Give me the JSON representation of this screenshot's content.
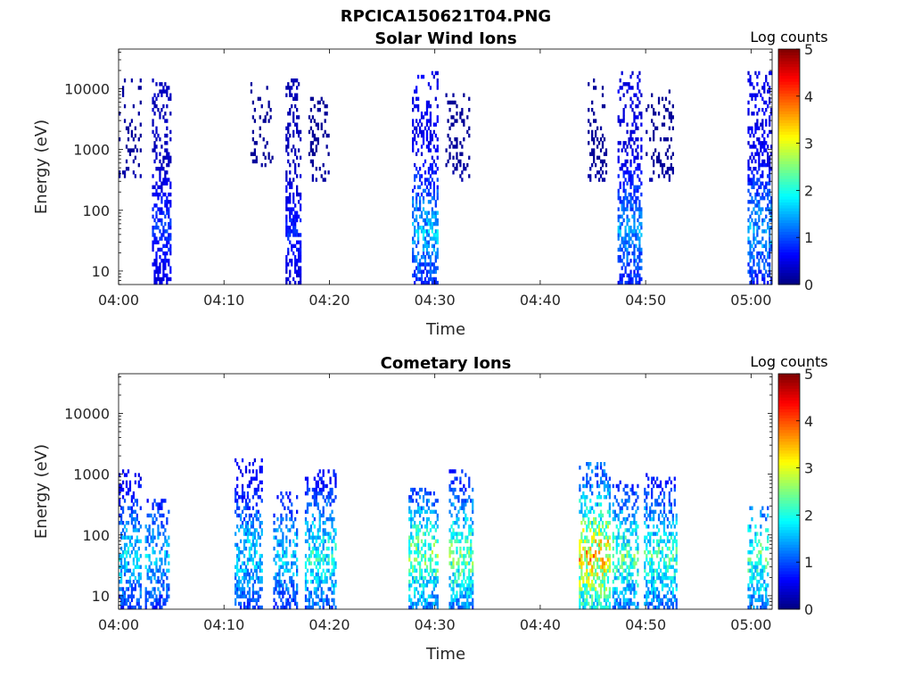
{
  "figure": {
    "title": "RPCICA150621T04.PNG",
    "background": "#ffffff"
  },
  "colormap": {
    "name": "jet",
    "colors": [
      "#00007f",
      "#0000ff",
      "#007fff",
      "#00ffff",
      "#7fff7f",
      "#ffff00",
      "#ff7f00",
      "#ff0000",
      "#7f0000"
    ]
  },
  "chart_data": [
    {
      "type": "heatmap",
      "title": "Solar Wind Ions",
      "xlabel": "Time",
      "ylabel": "Energy (eV)",
      "y_scale": "log",
      "xlim": [
        "04:00",
        "05:02"
      ],
      "ylim": [
        6,
        45000
      ],
      "x_ticks": [
        "04:00",
        "04:10",
        "04:20",
        "04:30",
        "04:40",
        "04:50",
        "05:00"
      ],
      "y_ticks": [
        10,
        100,
        1000,
        10000
      ],
      "y_tick_labels": [
        "10",
        "100",
        "1000",
        "10000"
      ],
      "colorbar": {
        "label": "Log counts",
        "range": [
          0,
          5
        ],
        "ticks": [
          "0",
          "1",
          "2",
          "3",
          "4",
          "5"
        ]
      },
      "bursts": [
        {
          "t_start": "03:59:50",
          "t_end": "04:02:00",
          "e_low": 300,
          "e_high": 14000,
          "peak": 0.5,
          "density": 0.22
        },
        {
          "t_start": "04:03:10",
          "t_end": "04:04:50",
          "e_low": 6,
          "e_high": 15000,
          "peak": 1.0,
          "density": 0.6
        },
        {
          "t_start": "04:12:30",
          "t_end": "04:14:30",
          "e_low": 500,
          "e_high": 12000,
          "peak": 0.4,
          "density": 0.2
        },
        {
          "t_start": "04:15:50",
          "t_end": "04:17:20",
          "e_low": 6,
          "e_high": 15000,
          "peak": 0.9,
          "density": 0.6
        },
        {
          "t_start": "04:18:00",
          "t_end": "04:20:00",
          "e_low": 300,
          "e_high": 8000,
          "peak": 0.4,
          "density": 0.3
        },
        {
          "t_start": "04:27:50",
          "t_end": "04:30:20",
          "e_low": 6,
          "e_high": 20000,
          "peak": 1.8,
          "density": 0.6
        },
        {
          "t_start": "04:31:00",
          "t_end": "04:33:20",
          "e_low": 300,
          "e_high": 8000,
          "peak": 0.4,
          "density": 0.25
        },
        {
          "t_start": "04:44:30",
          "t_end": "04:46:20",
          "e_low": 300,
          "e_high": 15000,
          "peak": 0.4,
          "density": 0.25
        },
        {
          "t_start": "04:47:20",
          "t_end": "04:49:40",
          "e_low": 6,
          "e_high": 20000,
          "peak": 1.6,
          "density": 0.6
        },
        {
          "t_start": "04:50:00",
          "t_end": "04:52:40",
          "e_low": 300,
          "e_high": 10000,
          "peak": 0.4,
          "density": 0.25
        },
        {
          "t_start": "04:59:40",
          "t_end": "05:02:10",
          "e_low": 6,
          "e_high": 20000,
          "peak": 1.7,
          "density": 0.55
        }
      ]
    },
    {
      "type": "heatmap",
      "title": "Cometary Ions",
      "xlabel": "Time",
      "ylabel": "Energy (eV)",
      "y_scale": "log",
      "xlim": [
        "04:00",
        "05:02"
      ],
      "ylim": [
        6,
        45000
      ],
      "x_ticks": [
        "04:00",
        "04:10",
        "04:20",
        "04:30",
        "04:40",
        "04:50",
        "05:00"
      ],
      "y_ticks": [
        10,
        100,
        1000,
        10000
      ],
      "y_tick_labels": [
        "10",
        "100",
        "1000",
        "10000"
      ],
      "colorbar": {
        "label": "Log counts",
        "range": [
          0,
          5
        ],
        "ticks": [
          "0",
          "1",
          "2",
          "3",
          "4",
          "5"
        ]
      },
      "bursts": [
        {
          "t_start": "03:59:50",
          "t_end": "04:02:00",
          "e_low": 6,
          "e_high": 1200,
          "peak": 2.0,
          "density": 0.6
        },
        {
          "t_start": "04:02:30",
          "t_end": "04:04:40",
          "e_low": 6,
          "e_high": 400,
          "peak": 1.8,
          "density": 0.6
        },
        {
          "t_start": "04:11:00",
          "t_end": "04:13:30",
          "e_low": 6,
          "e_high": 1800,
          "peak": 2.0,
          "density": 0.6
        },
        {
          "t_start": "04:14:40",
          "t_end": "04:17:00",
          "e_low": 6,
          "e_high": 500,
          "peak": 1.9,
          "density": 0.6
        },
        {
          "t_start": "04:17:40",
          "t_end": "04:20:40",
          "e_low": 6,
          "e_high": 1200,
          "peak": 2.3,
          "density": 0.6
        },
        {
          "t_start": "04:27:30",
          "t_end": "04:30:20",
          "e_low": 6,
          "e_high": 600,
          "peak": 2.8,
          "density": 0.65
        },
        {
          "t_start": "04:31:20",
          "t_end": "04:33:40",
          "e_low": 6,
          "e_high": 1200,
          "peak": 2.8,
          "density": 0.65
        },
        {
          "t_start": "04:43:40",
          "t_end": "04:46:40",
          "e_low": 6,
          "e_high": 1600,
          "peak": 3.8,
          "density": 0.7
        },
        {
          "t_start": "04:46:50",
          "t_end": "04:49:20",
          "e_low": 6,
          "e_high": 800,
          "peak": 2.6,
          "density": 0.65
        },
        {
          "t_start": "04:49:50",
          "t_end": "04:53:00",
          "e_low": 6,
          "e_high": 1100,
          "peak": 2.5,
          "density": 0.65
        },
        {
          "t_start": "04:59:40",
          "t_end": "05:01:40",
          "e_low": 6,
          "e_high": 300,
          "peak": 2.6,
          "density": 0.6
        }
      ]
    }
  ]
}
